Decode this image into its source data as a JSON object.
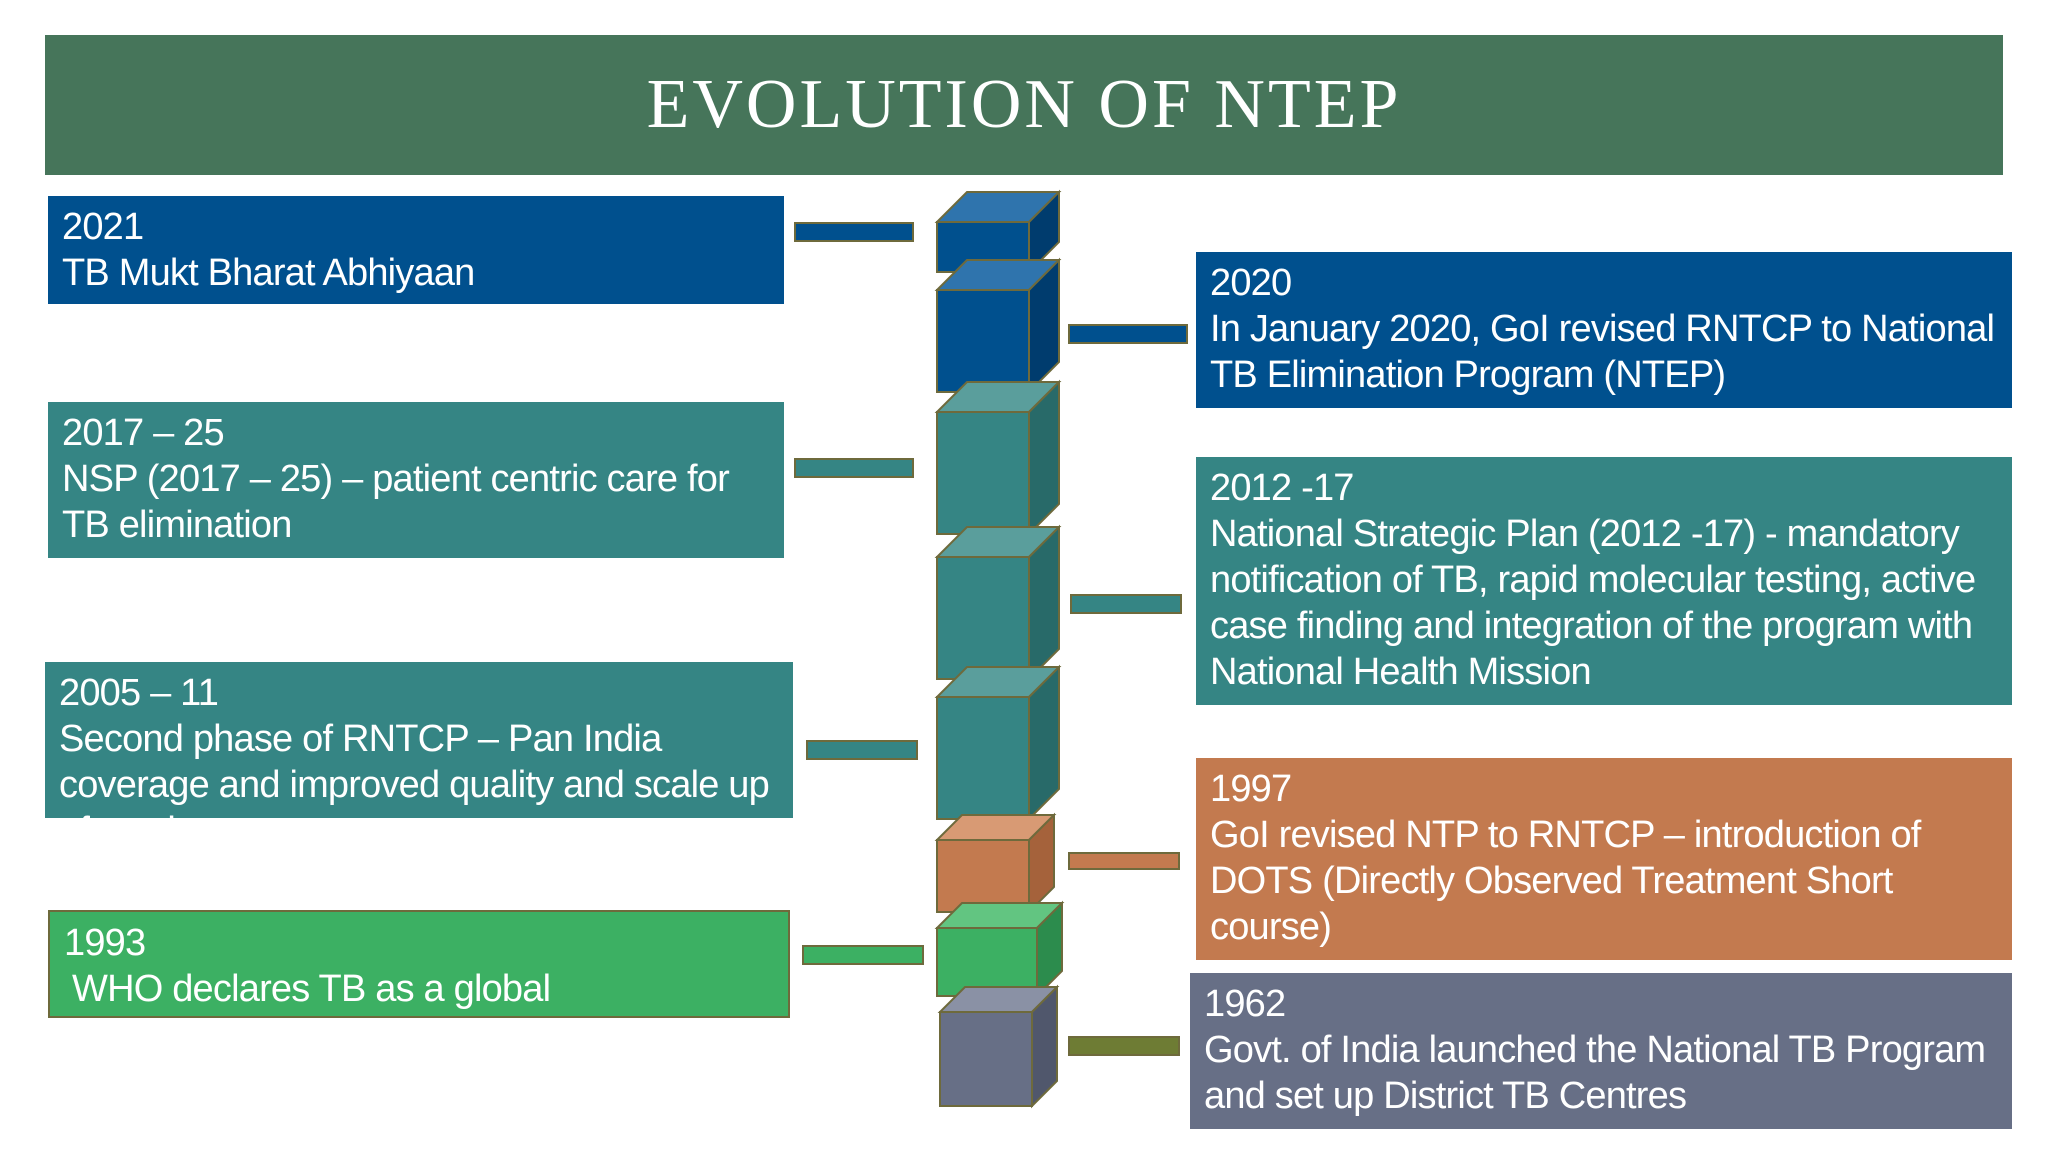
{
  "title": "EVOLUTION OF NTEP",
  "colors": {
    "banner": "#46755a",
    "dark_blue": "#00508e",
    "teal": "#358584",
    "orange": "#c37a4f",
    "green": "#3cb063",
    "slate": "#676f86",
    "connector_olive": "#6e7c34"
  },
  "milestones": [
    {
      "year": "2021",
      "text": "TB Mukt Bharat Abhiyaan",
      "side": "left",
      "color": "#00508e"
    },
    {
      "year": "2020",
      "text": "In January 2020, GoI revised RNTCP to National TB Elimination Program (NTEP)",
      "side": "right",
      "color": "#00508e"
    },
    {
      "year": "2017 – 25",
      "text": "NSP (2017 – 25) – patient centric care for TB elimination",
      "side": "left",
      "color": "#358584"
    },
    {
      "year": "2012 -17",
      "text": "National Strategic Plan (2012 -17) - mandatory notification of TB, rapid molecular testing, active case finding and integration of the program with National Health Mission",
      "side": "right",
      "color": "#358584"
    },
    {
      "year": "2005 – 11",
      "text": "Second phase of RNTCP – Pan India coverage and improved quality and scale up of services",
      "side": "left",
      "color": "#358584"
    },
    {
      "year": "1997",
      "text": "GoI revised NTP to RNTCP – introduction of DOTS (Directly Observed Treatment Short course)",
      "side": "right",
      "color": "#c37a4f"
    },
    {
      "year": "1993",
      "text": "WHO declares TB as a global",
      "side": "left",
      "color": "#3cb063"
    },
    {
      "year": "1962",
      "text": "Govt. of India launched the National TB Program and set up District TB Centres",
      "side": "right",
      "color": "#676f86"
    }
  ]
}
